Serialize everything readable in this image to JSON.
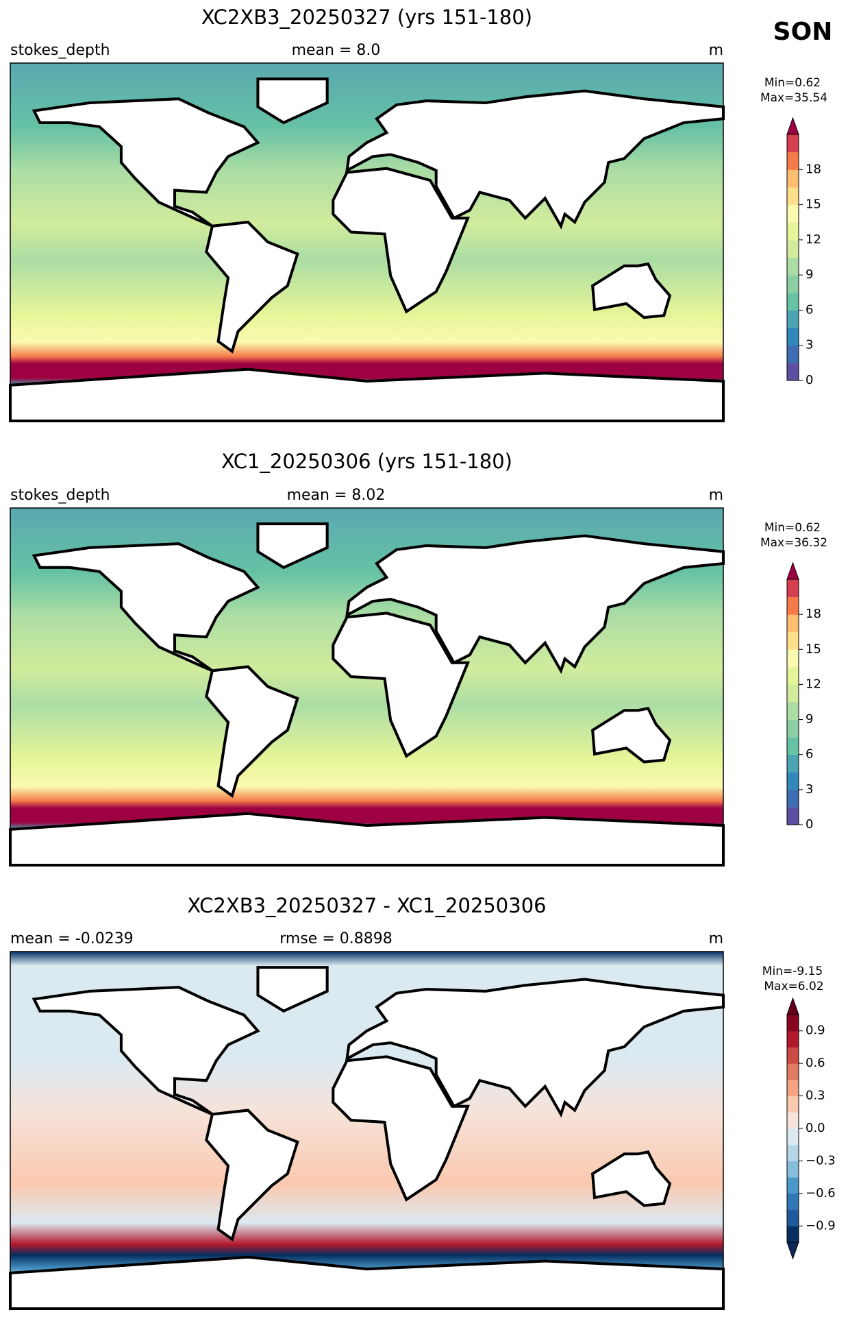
{
  "season": "SON",
  "panels": [
    {
      "title": "XC2XB3_20250327 (yrs 151-180)",
      "left_label": "stokes_depth",
      "center_label": "mean = 8.0",
      "right_label": "m",
      "min_label": "Min=0.62",
      "max_label": "Max=35.54",
      "colorbar": {
        "lim": [
          0,
          21
        ],
        "ticks": [
          0,
          3,
          6,
          9,
          12,
          15,
          18
        ],
        "colors": [
          "#5e4fa2",
          "#3f6db1",
          "#3288bd",
          "#4ba4b1",
          "#66c2a5",
          "#8ccfa4",
          "#abdda4",
          "#d1ec9c",
          "#e6f598",
          "#fafab0",
          "#fee08b",
          "#fdbf6f",
          "#f67b4b",
          "#d53e4f"
        ],
        "over": "#9e0142"
      }
    },
    {
      "title": "XC1_20250306 (yrs 151-180)",
      "left_label": "stokes_depth",
      "center_label": "mean = 8.02",
      "right_label": "m",
      "min_label": "Min=0.62",
      "max_label": "Max=36.32",
      "colorbar": {
        "lim": [
          0,
          21
        ],
        "ticks": [
          0,
          3,
          6,
          9,
          12,
          15,
          18
        ],
        "colors": [
          "#5e4fa2",
          "#3f6db1",
          "#3288bd",
          "#4ba4b1",
          "#66c2a5",
          "#8ccfa4",
          "#abdda4",
          "#d1ec9c",
          "#e6f598",
          "#fafab0",
          "#fee08b",
          "#fdbf6f",
          "#f67b4b",
          "#d53e4f"
        ],
        "over": "#9e0142"
      }
    },
    {
      "title": "XC2XB3_20250327 - XC1_20250306",
      "left_label": "mean = -0.0239",
      "center_label": "rmse = 0.8898",
      "right_label": "m",
      "min_label": "Min=-9.15",
      "max_label": "Max=6.02",
      "colorbar": {
        "lim": [
          -1.05,
          1.05
        ],
        "ticks": [
          {
            "value": -0.9,
            "label": "−0.9"
          },
          {
            "value": -0.6,
            "label": "−0.6"
          },
          {
            "value": -0.3,
            "label": "−0.3"
          },
          {
            "value": 0,
            "label": "0.0"
          },
          0.3,
          0.6,
          0.9
        ],
        "colors": [
          "#053061",
          "#1f5a9a",
          "#2f78b5",
          "#4a98c8",
          "#86bddb",
          "#b6d7e8",
          "#dbe9f1",
          "#f6e3d9",
          "#fbc9b0",
          "#f4a582",
          "#e07b62",
          "#cb4a43",
          "#b2182b",
          "#86071f"
        ],
        "under": "#0b2a5a",
        "over": "#67001f"
      }
    }
  ]
}
